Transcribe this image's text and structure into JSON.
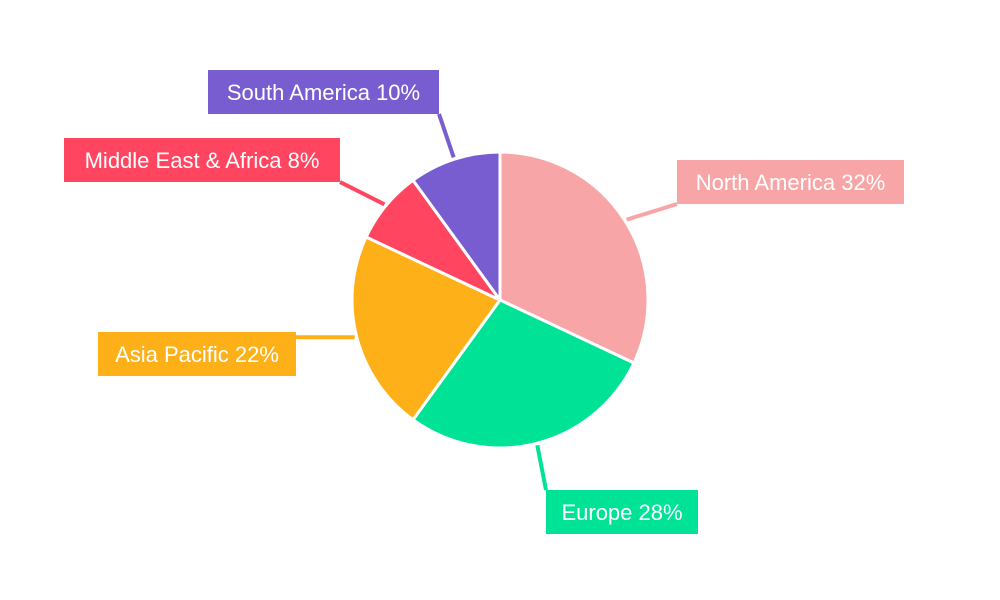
{
  "chart_data": {
    "type": "pie",
    "slices": [
      {
        "label": "North America",
        "value": 32,
        "text": "North America 32%",
        "color": "#F8A5A7"
      },
      {
        "label": "Europe",
        "value": 28,
        "text": "Europe 28%",
        "color": "#00E396"
      },
      {
        "label": "Asia Pacific",
        "value": 22,
        "text": "Asia Pacific 22%",
        "color": "#FEB019"
      },
      {
        "label": "Middle East & Africa",
        "value": 8,
        "text": "Middle East & Africa 8%",
        "color": "#FF4560"
      },
      {
        "label": "South America",
        "value": 10,
        "text": "South America 10%",
        "color": "#775DD0"
      }
    ],
    "legend": "none",
    "labels": "outside-with-leader-lines"
  }
}
